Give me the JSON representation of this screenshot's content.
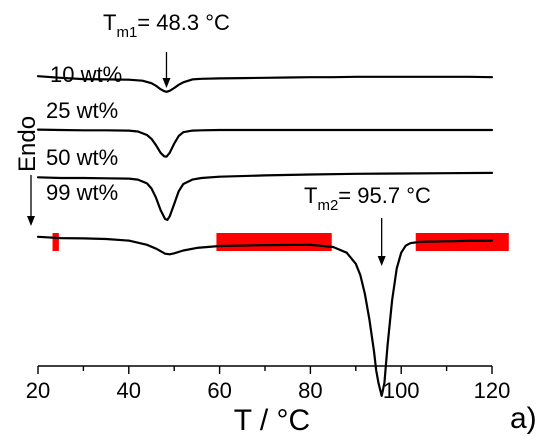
{
  "chart_data": {
    "type": "line",
    "xlabel": "T / °C",
    "ylabel": "Endo",
    "xlim": [
      20,
      120
    ],
    "xticks": [
      "20",
      "40",
      "60",
      "80",
      "100",
      "120"
    ],
    "panel_label": "a)",
    "grid": false,
    "legend": "series labels placed next to each curve",
    "series": [
      {
        "name": "10 wt%",
        "color": "#000000",
        "x": [
          20,
          25,
          30,
          35,
          40,
          43,
          45,
          46,
          47,
          47.8,
          48.3,
          49,
          50,
          51,
          52,
          54,
          56,
          60,
          65,
          70,
          75,
          80,
          85,
          90,
          95,
          100,
          105,
          110,
          115,
          120
        ],
        "y": [
          90.5,
          90,
          89.6,
          89.5,
          89.4,
          89.1,
          88.3,
          87.5,
          86.4,
          85.8,
          85.6,
          85.9,
          86.8,
          87.8,
          88.6,
          89.5,
          89.7,
          89.8,
          89.9,
          90,
          90.1,
          90.2,
          90.2,
          90.3,
          90.3,
          90.3,
          90.3,
          90.3,
          90.3,
          90.2
        ]
      },
      {
        "name": "25 wt%",
        "color": "#000000",
        "x": [
          20,
          25,
          30,
          35,
          40,
          42,
          44,
          45,
          46,
          47,
          47.8,
          48.3,
          49,
          50,
          51,
          52,
          54,
          56,
          60,
          70,
          80,
          90,
          100,
          110,
          120
        ],
        "y": [
          73.7,
          73.6,
          73.5,
          73.5,
          73.4,
          73.1,
          72,
          70.8,
          68.8,
          66.4,
          65.3,
          65.2,
          66.4,
          69.3,
          71.7,
          72.9,
          73.4,
          73.5,
          73.6,
          73.6,
          73.6,
          73.6,
          73.6,
          73.6,
          73.6
        ]
      },
      {
        "name": "50 wt%",
        "color": "#000000",
        "x": [
          20,
          25,
          30,
          35,
          40,
          42,
          44,
          45,
          46,
          47,
          48,
          48.5,
          49,
          50,
          51,
          52,
          54,
          56,
          60,
          70,
          80,
          90,
          100,
          110,
          120
        ],
        "y": [
          58.7,
          58.5,
          58.5,
          58.4,
          58.3,
          58,
          56.8,
          55.2,
          52.3,
          48.4,
          45.6,
          45.3,
          46.4,
          50.3,
          54.3,
          56.6,
          58,
          58.5,
          58.9,
          59.3,
          59.6,
          59.8,
          59.9,
          60,
          60.1
        ]
      },
      {
        "name": "99 wt%",
        "color": "#000000",
        "x": [
          20,
          25,
          30,
          35,
          40,
          44,
          46,
          48,
          49,
          50,
          52,
          55,
          60,
          70,
          80,
          85,
          88,
          90,
          91,
          92,
          93,
          94,
          94.5,
          95,
          95.7,
          96.3,
          97,
          98,
          99,
          100,
          101,
          102,
          104,
          106,
          110,
          115,
          120
        ],
        "y": [
          40,
          39.6,
          39.5,
          39.3,
          38.8,
          37.5,
          36.3,
          34.7,
          34.5,
          34.8,
          35.7,
          36.5,
          37.1,
          37.4,
          37.5,
          36.8,
          35,
          31.5,
          28,
          22,
          14,
          4,
          -2,
          -6,
          -10,
          -6,
          6,
          20,
          30,
          35,
          37.2,
          38,
          38.4,
          38.5,
          38.6,
          38.7,
          38.8
        ]
      }
    ],
    "annotations": [
      {
        "text_main": "T",
        "text_sub": "m1",
        "text_rest": "= 48.3 °C",
        "arrow_x": 48.3
      },
      {
        "text_main": "T",
        "text_sub": "m2",
        "text_rest": "= 95.7 °C",
        "arrow_x": 95.7
      }
    ],
    "highlight_bars": [
      {
        "x_start": 23.2,
        "x_end": 24.6,
        "color": "#ff0000"
      },
      {
        "x_start": 59.3,
        "x_end": 84.7,
        "color": "#ff0000"
      },
      {
        "x_start": 103.2,
        "x_end": 123.7,
        "color": "#ff0000"
      }
    ]
  }
}
